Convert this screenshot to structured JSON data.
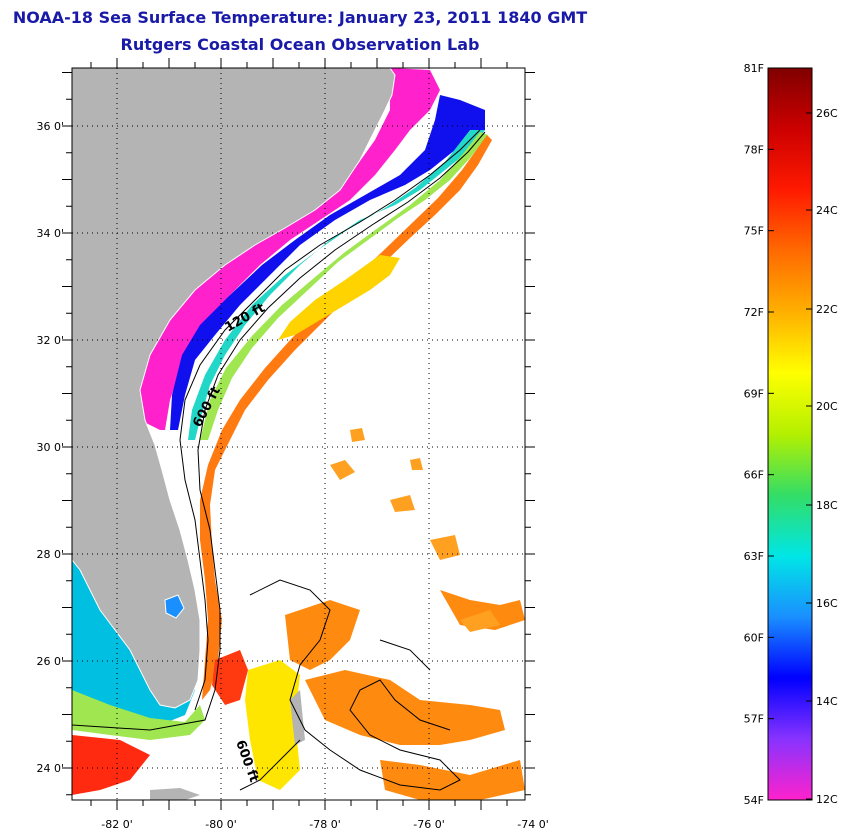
{
  "title": "NOAA-18 Sea Surface Temperature:  January 23, 2011 1840 GMT",
  "subtitle": "Rutgers Coastal Ocean Observation Lab",
  "map": {
    "lat_ticks": [
      {
        "value": 36,
        "label": "36 0'"
      },
      {
        "value": 34,
        "label": "34 0'"
      },
      {
        "value": 32,
        "label": "32 0'"
      },
      {
        "value": 30,
        "label": "30 0'"
      },
      {
        "value": 28,
        "label": "28 0'"
      },
      {
        "value": 26,
        "label": "26 0'"
      },
      {
        "value": 24,
        "label": "24 0'"
      }
    ],
    "lon_ticks": [
      {
        "value": -82,
        "label": "-82 0'"
      },
      {
        "value": -80,
        "label": "-80 0'"
      },
      {
        "value": -78,
        "label": "-78 0'"
      },
      {
        "value": -76,
        "label": "-76 0'"
      },
      {
        "value": -74,
        "label": "-74 0'"
      }
    ],
    "contour_labels": {
      "c120": "120 ft",
      "c600a": "600 ft",
      "c600b": "600 ft"
    },
    "land_color": "#b4b4b4",
    "grid": "dotted"
  },
  "colorbar": {
    "fahrenheit": [
      "81F",
      "78F",
      "75F",
      "72F",
      "69F",
      "66F",
      "63F",
      "60F",
      "57F",
      "54F"
    ],
    "celsius": [
      "26C",
      "24C",
      "22C",
      "20C",
      "18C",
      "16C",
      "14C",
      "12C"
    ],
    "colors": [
      "#ff22cc",
      "#8833ff",
      "#0000ff",
      "#1a8fff",
      "#00e6e6",
      "#33dd66",
      "#b4f000",
      "#ffff00",
      "#ffb000",
      "#ff6a00",
      "#ff1a00",
      "#cc0000",
      "#800000"
    ]
  }
}
